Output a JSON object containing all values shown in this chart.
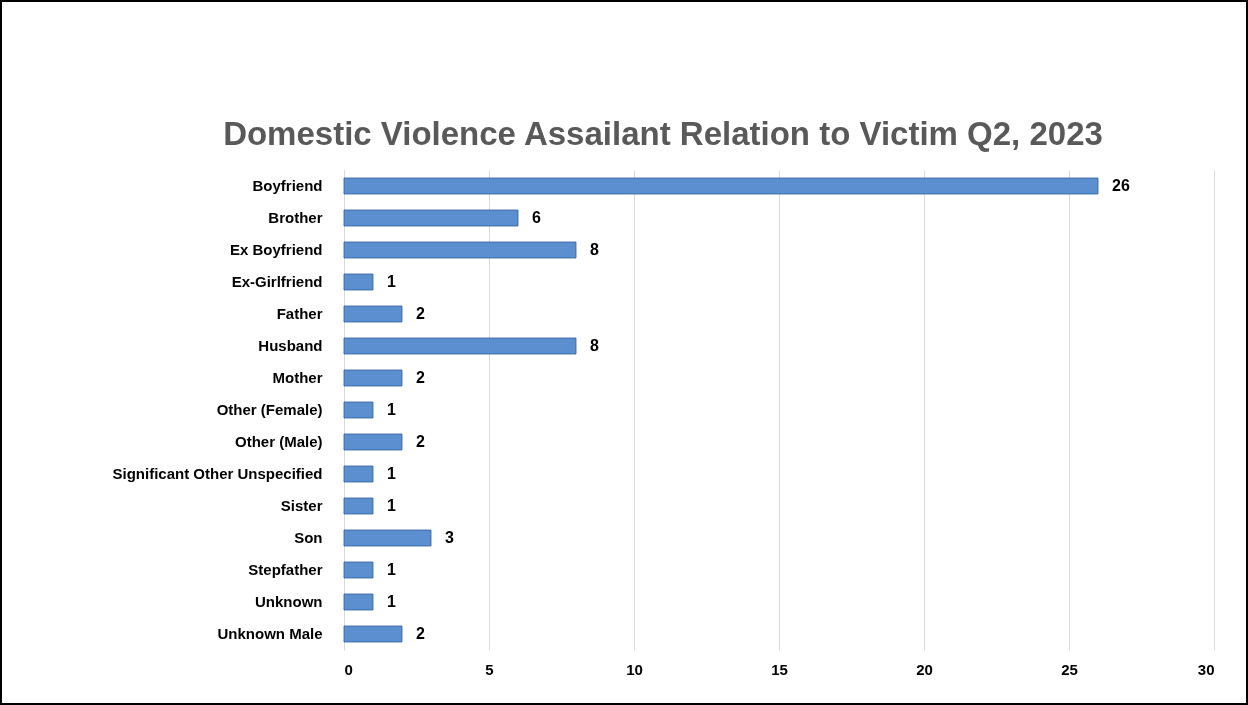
{
  "chart_data": {
    "type": "bar",
    "orientation": "horizontal",
    "title": "Domestic Violence Assailant Relation to Victim Q2, 2023",
    "categories": [
      "Boyfriend",
      "Brother",
      "Ex Boyfriend",
      "Ex-Girlfriend",
      "Father",
      "Husband",
      "Mother",
      "Other (Female)",
      "Other (Male)",
      "Significant Other Unspecified",
      "Sister",
      "Son",
      "Stepfather",
      "Unknown",
      "Unknown Male"
    ],
    "values": [
      26,
      6,
      8,
      1,
      2,
      8,
      2,
      1,
      2,
      1,
      1,
      3,
      1,
      1,
      2
    ],
    "color": "#5b8fd0",
    "xlim": [
      0,
      30
    ],
    "xticks": [
      0,
      5,
      10,
      15,
      20,
      25,
      30
    ],
    "grid": "x",
    "data_labels": true
  }
}
